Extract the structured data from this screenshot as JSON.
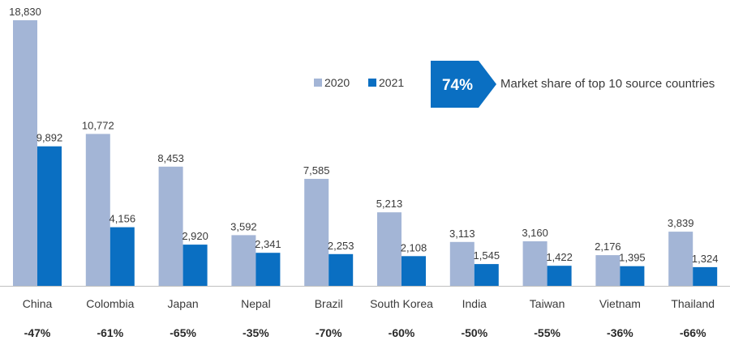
{
  "chart_data": {
    "type": "bar",
    "categories": [
      "China",
      "Colombia",
      "Japan",
      "Nepal",
      "Brazil",
      "South Korea",
      "India",
      "Taiwan",
      "Vietnam",
      "Thailand"
    ],
    "series": [
      {
        "name": "2020",
        "color": "#a3b5d6",
        "values": [
          18830,
          10772,
          8453,
          3592,
          7585,
          5213,
          3113,
          3160,
          2176,
          3839
        ]
      },
      {
        "name": "2021",
        "color": "#0a6fc2",
        "values": [
          9892,
          4156,
          2920,
          2341,
          2253,
          2108,
          1545,
          1422,
          1395,
          1324
        ]
      }
    ],
    "value_labels": {
      "2020": [
        "18,830",
        "10,772",
        "8,453",
        "3,592",
        "7,585",
        "5,213",
        "3,113",
        "3,160",
        "2,176",
        "3,839"
      ],
      "2021": [
        "9,892",
        "4,156",
        "2,920",
        "2,341",
        "2,253",
        "2,108",
        "1,545",
        "1,422",
        "1,395",
        "1,324"
      ]
    },
    "changes": [
      "-47%",
      "-61%",
      "-65%",
      "-35%",
      "-70%",
      "-60%",
      "-50%",
      "-55%",
      "-36%",
      "-66%"
    ],
    "ylim": [
      0,
      18830
    ],
    "grid": false,
    "legend_position": "top-right"
  },
  "callout": {
    "badge": "74%",
    "text": "Market share of top 10 source countries",
    "color": "#0a6fc2"
  }
}
